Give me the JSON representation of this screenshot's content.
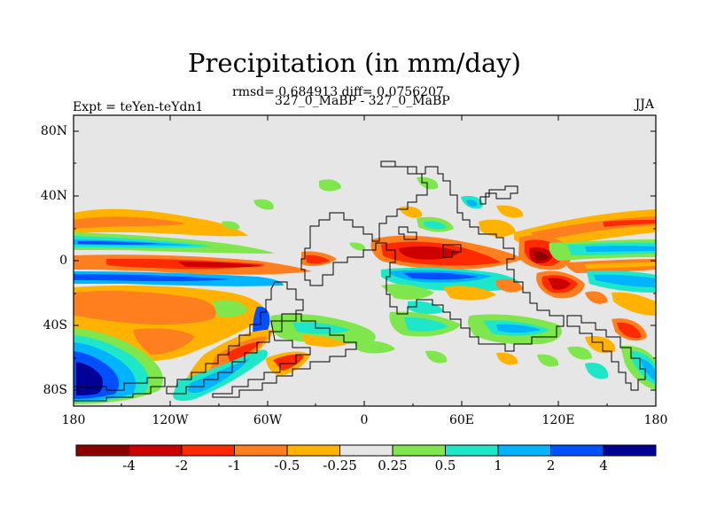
{
  "title": "Precipitation (in mm/day)",
  "stats_line": "rmsd= 0.684913 diff= 0.0756207",
  "comparison_line": "327_0_MaBP - 327_0_MaBP",
  "experiment_label": "Expt = teYen-teYdn1",
  "season_label": "JJA",
  "lat_ticks": [
    "80N",
    "40N",
    "0",
    "40S",
    "80S"
  ],
  "lon_ticks": [
    "180",
    "120W",
    "60W",
    "0",
    "60E",
    "120E",
    "180"
  ],
  "colorbar": {
    "labels": [
      "-4",
      "-2",
      "-1",
      "-0.5",
      "-0.25",
      "0.25",
      "0.5",
      "1",
      "2",
      "4"
    ],
    "colors": [
      "#8b0000",
      "#cd0000",
      "#ff2a00",
      "#ff7f1e",
      "#ffb300",
      "#e6e6e6",
      "#7fe64d",
      "#1ee6c8",
      "#00b4ff",
      "#0050ff",
      "#000096"
    ]
  },
  "colors": {
    "background_land": "#e6e6e6",
    "frame": "#000000"
  }
}
